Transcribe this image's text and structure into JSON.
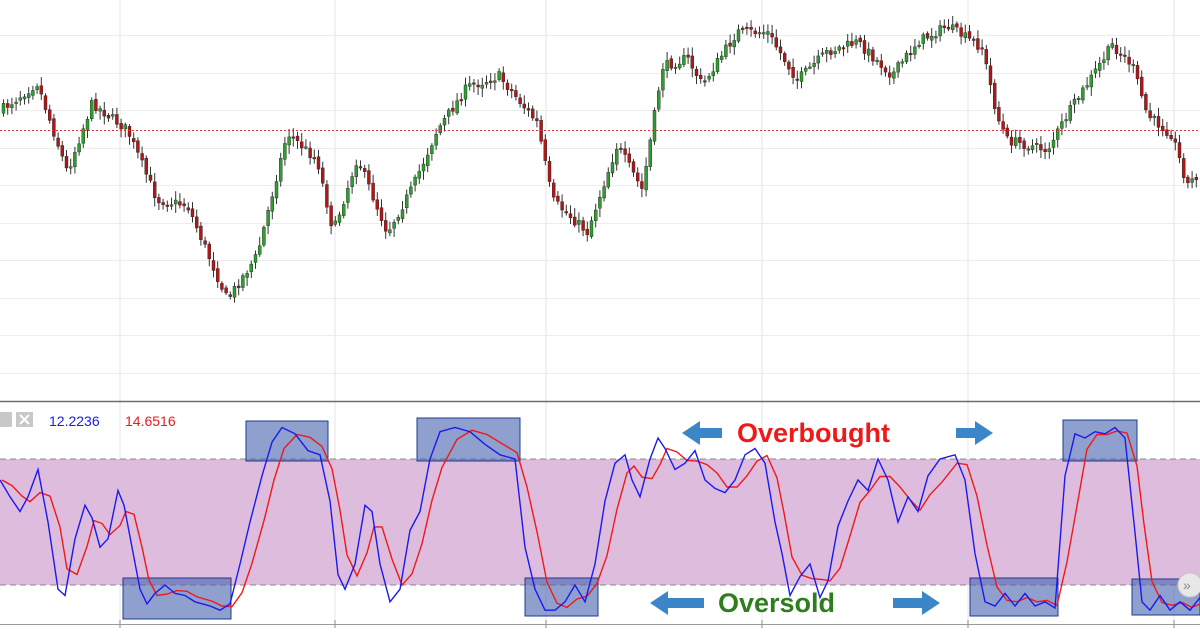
{
  "chart_data": [
    {
      "type": "candlestick",
      "pane": "price",
      "grid": true,
      "reference_line": {
        "style": "dotted",
        "color": "#e03030"
      },
      "colors": {
        "up": "#2e9e2e",
        "down": "#b01818",
        "wick": "#333333"
      }
    },
    {
      "type": "line",
      "pane": "stochastic",
      "legend_values": [
        "12.2236",
        "14.6516"
      ],
      "series": [
        {
          "color": "#1a1aee"
        },
        {
          "color": "#ee1a1a"
        }
      ],
      "ylim": [
        0,
        100
      ],
      "overbought_level": 80,
      "oversold_level": 20,
      "band_color": "#dcb8dc",
      "annotations": {
        "overbought": "Overbought",
        "oversold": "Oversold"
      },
      "annotation_colors": {
        "overbought": "#ee1a1a",
        "oversold": "#2e7d1e",
        "arrow": "#3a86c8",
        "box": "#4a64b0"
      }
    }
  ]
}
